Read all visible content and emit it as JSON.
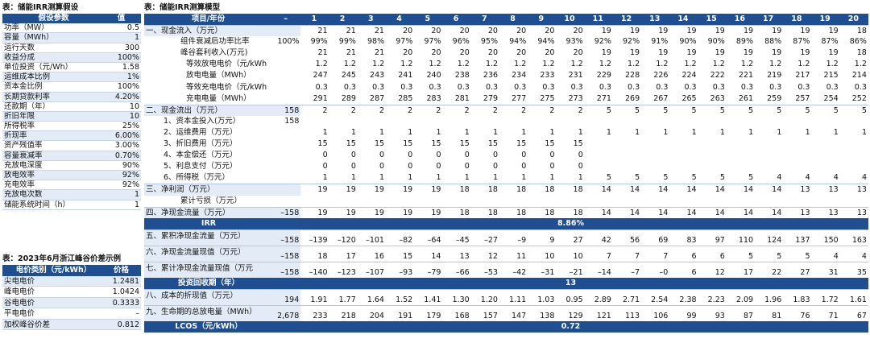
{
  "left_table1": {
    "title": "表：储能IRR测算假设",
    "header": [
      "假设参数",
      "值"
    ],
    "rows": [
      [
        "功率（MW）",
        "0.5"
      ],
      [
        "容量（MWh）",
        "1"
      ],
      [
        "运行天数",
        "300"
      ],
      [
        "收益分成",
        "100%"
      ],
      [
        "单位投资（元/Wh）",
        "1.58"
      ],
      [
        "运维成本比例",
        "1%"
      ],
      [
        "资本金比例",
        "100%"
      ],
      [
        "长期贷款利率",
        "4.20%"
      ],
      [
        "还款期（年）",
        "10"
      ],
      [
        "折旧年限",
        "10"
      ],
      [
        "所得税率",
        "25%"
      ],
      [
        "折现率",
        "6.00%"
      ],
      [
        "资产残值率",
        "3.00%"
      ],
      [
        "容量衰减率",
        "0.70%"
      ],
      [
        "充放电深度",
        "90%"
      ],
      [
        "放电效率",
        "92%"
      ],
      [
        "充电效率",
        "92%"
      ],
      [
        "充放电次数",
        "1"
      ],
      [
        "储能系统时间（h）",
        "1"
      ]
    ]
  },
  "left_table2": {
    "title": "表：2023年6月浙江峰谷价差示例",
    "header": [
      "电价类别（元/kWh）",
      "价格"
    ],
    "rows": [
      [
        "尖电电价",
        "1.2481"
      ],
      [
        "峰电电价",
        "1.0424"
      ],
      [
        "谷电电价",
        "0.3333"
      ],
      [
        "平电电价",
        "–"
      ],
      [
        "加权峰谷价差",
        "0.812"
      ]
    ]
  },
  "model": {
    "title": "表：储能IRR测算模型",
    "header": [
      "项目/年份",
      "–",
      "1",
      "2",
      "3",
      "4",
      "5",
      "6",
      "7",
      "8",
      "9",
      "10",
      "11",
      "12",
      "13",
      "14",
      "15",
      "16",
      "17",
      "18",
      "19",
      "20"
    ],
    "rows": [
      {
        "label": "一、现金流入（万元）",
        "cls": "sec",
        "vals": [
          "",
          "21",
          "21",
          "21",
          "20",
          "20",
          "20",
          "20",
          "20",
          "20",
          "20",
          "19",
          "19",
          "19",
          "19",
          "19",
          "19",
          "19",
          "19",
          "19",
          "18"
        ]
      },
      {
        "label": "组件衰减后功率比率",
        "cls": "i1",
        "vals": [
          "100%",
          "99%",
          "99%",
          "98%",
          "97%",
          "97%",
          "96%",
          "95%",
          "94%",
          "94%",
          "93%",
          "92%",
          "92%",
          "91%",
          "90%",
          "90%",
          "89%",
          "88%",
          "87%",
          "87%",
          "86%"
        ]
      },
      {
        "label": "峰谷套利收入(万元)",
        "cls": "i1",
        "vals": [
          "",
          "21",
          "21",
          "21",
          "20",
          "20",
          "20",
          "20",
          "20",
          "20",
          "20",
          "19",
          "19",
          "19",
          "19",
          "19",
          "19",
          "19",
          "19",
          "19",
          "18"
        ]
      },
      {
        "label": "等效放电电价（元/kWh",
        "cls": "i2",
        "vals": [
          "",
          "1.2",
          "1.2",
          "1.2",
          "1.2",
          "1.2",
          "1.2",
          "1.2",
          "1.2",
          "1.2",
          "1.2",
          "1.2",
          "1.2",
          "1.2",
          "1.2",
          "1.2",
          "1.2",
          "1.2",
          "1.2",
          "1.2",
          "1.2"
        ]
      },
      {
        "label": "放电电量（MWh）",
        "cls": "i2",
        "vals": [
          "",
          "247",
          "245",
          "243",
          "241",
          "240",
          "238",
          "236",
          "234",
          "233",
          "231",
          "229",
          "228",
          "226",
          "224",
          "222",
          "221",
          "219",
          "217",
          "215",
          "214"
        ]
      },
      {
        "label": "等效充电电价（元/kWh",
        "cls": "i2",
        "vals": [
          "",
          "0.3",
          "0.3",
          "0.3",
          "0.3",
          "0.3",
          "0.3",
          "0.3",
          "0.3",
          "0.3",
          "0.3",
          "0.3",
          "0.3",
          "0.3",
          "0.3",
          "0.3",
          "0.3",
          "0.3",
          "0.3",
          "0.3",
          "0.3"
        ]
      },
      {
        "label": "充电电量（MWh）",
        "cls": "i2",
        "vals": [
          "",
          "291",
          "289",
          "287",
          "285",
          "283",
          "281",
          "279",
          "277",
          "275",
          "273",
          "271",
          "269",
          "267",
          "265",
          "263",
          "261",
          "259",
          "257",
          "254",
          "252"
        ]
      },
      {
        "label": "二、现金流出（万元）",
        "cls": "sec",
        "vals": [
          "158",
          "2",
          "2",
          "2",
          "2",
          "2",
          "2",
          "2",
          "2",
          "2",
          "2",
          "5",
          "5",
          "5",
          "5",
          "5",
          "5",
          "5",
          "5",
          "5",
          "5"
        ]
      },
      {
        "label": "1、资本金投入(万元）",
        "cls": "i3",
        "vals": [
          "158",
          "",
          "",
          "",
          "",
          "",
          "",
          "",
          "",
          "",
          "",
          "",
          "",
          "",
          "",
          "",
          "",
          "",
          "",
          "",
          ""
        ]
      },
      {
        "label": "2、运维费用（万元）",
        "cls": "i3",
        "vals": [
          "",
          "1",
          "1",
          "1",
          "1",
          "1",
          "1",
          "1",
          "1",
          "1",
          "1",
          "1",
          "1",
          "1",
          "1",
          "1",
          "1",
          "1",
          "1",
          "1",
          "1"
        ]
      },
      {
        "label": "3、折旧费用（万元）",
        "cls": "i3",
        "vals": [
          "",
          "15",
          "15",
          "15",
          "15",
          "15",
          "15",
          "15",
          "15",
          "15",
          "15",
          "",
          "",
          "",
          "",
          "",
          "",
          "",
          "",
          "",
          ""
        ]
      },
      {
        "label": "4、本金偿还（万元）",
        "cls": "i3",
        "vals": [
          "",
          "0",
          "0",
          "0",
          "0",
          "0",
          "0",
          "0",
          "0",
          "0",
          "0",
          "",
          "",
          "",
          "",
          "",
          "",
          "",
          "",
          "",
          ""
        ]
      },
      {
        "label": "5、利息支付（万元）",
        "cls": "i3",
        "vals": [
          "",
          "0",
          "0",
          "0",
          "0",
          "0",
          "0",
          "0",
          "0",
          "0",
          "0",
          "",
          "",
          "",
          "",
          "",
          "",
          "",
          "",
          "",
          ""
        ]
      },
      {
        "label": "6、所得税（万元）",
        "cls": "i3",
        "vals": [
          "",
          "1",
          "1",
          "1",
          "1",
          "1",
          "1",
          "1",
          "1",
          "1",
          "1",
          "5",
          "5",
          "5",
          "5",
          "5",
          "5",
          "4",
          "4",
          "4",
          "4"
        ]
      },
      {
        "label": "三、净利润（万元）",
        "cls": "sec",
        "vals": [
          "",
          "19",
          "19",
          "19",
          "19",
          "19",
          "18",
          "18",
          "18",
          "18",
          "18",
          "14",
          "14",
          "14",
          "14",
          "14",
          "14",
          "14",
          "13",
          "13",
          "13"
        ]
      },
      {
        "label": "累计亏损（万元）",
        "cls": "i1",
        "vals": [
          "",
          "",
          "",
          "",
          "",
          "",
          "",
          "",
          "",
          "",
          "",
          "",
          "",
          "",
          "",
          "",
          "",
          "",
          "",
          "",
          ""
        ]
      },
      {
        "label": "四、净现金流量（万元）",
        "cls": "sec",
        "vals": [
          "–158",
          "19",
          "19",
          "19",
          "19",
          "19",
          "18",
          "18",
          "18",
          "18",
          "18",
          "14",
          "14",
          "14",
          "14",
          "14",
          "14",
          "14",
          "13",
          "13",
          "13"
        ]
      }
    ],
    "irr_label": "IRR",
    "irr_value": "8.86%",
    "rows2": [
      {
        "label": "五、累积净现金流量（万元）",
        "vals": [
          "–158",
          "–139",
          "–120",
          "–101",
          "–82",
          "–64",
          "–45",
          "–27",
          "–9",
          "9",
          "27",
          "42",
          "56",
          "69",
          "83",
          "97",
          "110",
          "124",
          "137",
          "150",
          "163"
        ]
      },
      {
        "label": "六、净现金流量现值（万元）",
        "vals": [
          "–158",
          "18",
          "17",
          "16",
          "15",
          "14",
          "13",
          "12",
          "11",
          "10",
          "10",
          "7",
          "7",
          "7",
          "6",
          "6",
          "5",
          "5",
          "5",
          "4",
          "4"
        ]
      },
      {
        "label": "七、累计净现金流量现值（万元",
        "vals": [
          "–158",
          "–140",
          "–123",
          "–107",
          "–93",
          "–79",
          "–66",
          "–53",
          "–42",
          "–31",
          "–21",
          "–14",
          "–7",
          "–0",
          "6",
          "12",
          "17",
          "22",
          "27",
          "31",
          "35"
        ]
      }
    ],
    "payback_label": "投资回收期（年）",
    "payback_value": "13",
    "rows3": [
      {
        "label": "八、成本的折现值（万元）",
        "vals": [
          "194",
          "1.91",
          "1.77",
          "1.64",
          "1.52",
          "1.41",
          "1.30",
          "1.20",
          "1.11",
          "1.03",
          "0.95",
          "2.89",
          "2.71",
          "2.54",
          "2.38",
          "2.23",
          "2.09",
          "1.96",
          "1.83",
          "1.72",
          "1.61"
        ]
      },
      {
        "label": "九、生命期的总放电量（MWh）",
        "vals": [
          "2,678",
          "233",
          "218",
          "204",
          "191",
          "179",
          "168",
          "157",
          "147",
          "138",
          "129",
          "121",
          "113",
          "106",
          "99",
          "93",
          "87",
          "81",
          "76",
          "71",
          "67"
        ]
      }
    ],
    "lcos_label": "LCOS（元/kWh）",
    "lcos_value": "0.72"
  }
}
